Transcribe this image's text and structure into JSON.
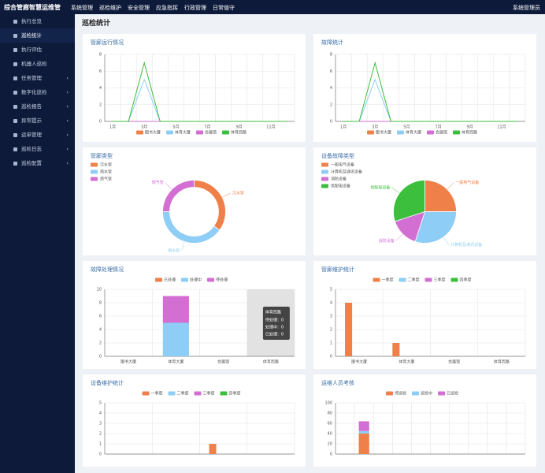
{
  "header": {
    "title": "综合管廊智慧运维管",
    "menu": [
      "系统管理",
      "巡检维护",
      "安全管理",
      "应急指挥",
      "行政管理",
      "日常值守"
    ],
    "user": "系统管理员"
  },
  "sidebar": {
    "active": 1,
    "items": [
      {
        "label": "执行总览",
        "expandable": false
      },
      {
        "label": "巡检统计",
        "expandable": false
      },
      {
        "label": "执行评估",
        "expandable": false
      },
      {
        "label": "机器人巡检",
        "expandable": false
      },
      {
        "label": "任务管理",
        "expandable": true
      },
      {
        "label": "数字化巡检",
        "expandable": true
      },
      {
        "label": "巡检报告",
        "expandable": true
      },
      {
        "label": "异常提示",
        "expandable": true
      },
      {
        "label": "运单管理",
        "expandable": true
      },
      {
        "label": "巡检日志",
        "expandable": true
      },
      {
        "label": "巡检配置",
        "expandable": true
      }
    ]
  },
  "page_title": "巡检统计",
  "panels": [
    {
      "type": "line",
      "title": "管廊运行情况",
      "legend": "bottom",
      "grid": true,
      "categories": [
        "1月",
        null,
        "3月",
        null,
        "5月",
        null,
        "7月",
        null,
        "9月",
        null,
        "11月",
        null
      ],
      "ylim": [
        0,
        8
      ],
      "yticks": [
        0,
        2,
        4,
        6,
        8
      ],
      "series": [
        {
          "name": "图书大厦",
          "color": "#f0804a",
          "values": [
            0,
            0,
            0,
            0,
            0,
            0,
            0,
            0,
            0,
            0,
            0,
            0
          ]
        },
        {
          "name": "体育大厦",
          "color": "#8ecdf5",
          "values": [
            0,
            0,
            5,
            0,
            0,
            0,
            0,
            0,
            0,
            0,
            0,
            0
          ]
        },
        {
          "name": "会展馆",
          "color": "#d36fd3",
          "values": [
            0,
            0,
            0,
            0,
            0,
            0,
            0,
            0,
            0,
            0,
            0,
            0
          ]
        },
        {
          "name": "体育西路",
          "color": "#3cbf3c",
          "values": [
            0,
            0,
            7,
            0,
            0,
            0,
            0,
            0,
            0,
            0,
            0,
            0
          ]
        }
      ]
    },
    {
      "type": "line",
      "title": "故障统计",
      "legend": "bottom",
      "grid": true,
      "categories": [
        "1月",
        null,
        "3月",
        null,
        "5月",
        null,
        "7月",
        null,
        "9月",
        null,
        "11月",
        null
      ],
      "ylim": [
        0,
        8
      ],
      "yticks": [
        0,
        2,
        4,
        6,
        8
      ],
      "series": [
        {
          "name": "图书大厦",
          "color": "#f0804a",
          "values": [
            0,
            0,
            0,
            0,
            0,
            0,
            0,
            0,
            0,
            0,
            0,
            0
          ]
        },
        {
          "name": "体育大厦",
          "color": "#8ecdf5",
          "values": [
            0,
            0,
            5,
            0,
            0,
            0,
            0,
            0,
            0,
            0,
            0,
            0
          ]
        },
        {
          "name": "会展馆",
          "color": "#d36fd3",
          "values": [
            0,
            0,
            0,
            0,
            0,
            0,
            0,
            0,
            0,
            0,
            0,
            0
          ]
        },
        {
          "name": "体育西路",
          "color": "#3cbf3c",
          "values": [
            0,
            0,
            7,
            0,
            0,
            0,
            0,
            0,
            0,
            0,
            0,
            0
          ]
        }
      ]
    },
    {
      "type": "pie",
      "title": "管廊类型",
      "legend": "top-left",
      "donut": true,
      "categories": [
        "污水管",
        "雨水管",
        "燃气管"
      ],
      "values": [
        35,
        40,
        25
      ],
      "colors": [
        "#f0804a",
        "#8ecdf5",
        "#d36fd3"
      ]
    },
    {
      "type": "pie",
      "title": "设备故障类型",
      "legend": "top-left",
      "donut": false,
      "categories": [
        "一般电气设备",
        "计算机及通讯设备",
        "消防设备",
        "供配电设备"
      ],
      "values": [
        25,
        30,
        15,
        30
      ],
      "colors": [
        "#f0804a",
        "#8ecdf5",
        "#d36fd3",
        "#3cbf3c"
      ]
    },
    {
      "type": "bar",
      "title": "故障处理情况",
      "legend": "top",
      "stacked": true,
      "grid": true,
      "categories": [
        "图书大厦",
        "体育大厦",
        "会展馆",
        "体育西路"
      ],
      "ylim": [
        0,
        10
      ],
      "yticks": [
        0,
        2,
        4,
        6,
        8,
        10
      ],
      "series": [
        {
          "name": "已处理",
          "color": "#f0804a",
          "values": [
            0,
            0,
            0,
            0
          ]
        },
        {
          "name": "处理中",
          "color": "#8ecdf5",
          "values": [
            0,
            5,
            0,
            0
          ]
        },
        {
          "name": "待处理",
          "color": "#d36fd3",
          "values": [
            0,
            4,
            0,
            0
          ]
        }
      ],
      "tooltip": {
        "title": "体育西路",
        "lines": [
          "待处理：0",
          "处理中：0",
          "已处理：0"
        ]
      }
    },
    {
      "type": "bar",
      "title": "管廊维护统计",
      "legend": "top",
      "stacked": false,
      "grid": true,
      "categories": [
        "图书大厦",
        "体育大厦",
        "会展馆",
        "体育西路"
      ],
      "ylim": [
        0,
        5
      ],
      "yticks": [
        0,
        1,
        2,
        3,
        4,
        5
      ],
      "series": [
        {
          "name": "一季度",
          "color": "#f0804a",
          "values": [
            4,
            1,
            0,
            0
          ]
        },
        {
          "name": "二季度",
          "color": "#8ecdf5",
          "values": [
            0,
            0,
            0,
            0
          ]
        },
        {
          "name": "三季度",
          "color": "#d36fd3",
          "values": [
            0,
            0,
            0,
            0
          ]
        },
        {
          "name": "四季度",
          "color": "#3cbf3c",
          "values": [
            0,
            0,
            0,
            0
          ]
        }
      ]
    },
    {
      "type": "bar",
      "title": "设备维护统计",
      "legend": "top",
      "stacked": false,
      "grid": true,
      "categories": [
        null,
        null,
        null,
        null
      ],
      "ylim": [
        0,
        5
      ],
      "yticks": [
        0,
        1,
        2,
        3,
        4,
        5
      ],
      "series": [
        {
          "name": "一季度",
          "color": "#f0804a",
          "values": [
            0,
            0,
            1,
            0
          ]
        },
        {
          "name": "二季度",
          "color": "#8ecdf5",
          "values": [
            0,
            0,
            0,
            0
          ]
        },
        {
          "name": "三季度",
          "color": "#d36fd3",
          "values": [
            0,
            0,
            0,
            0
          ]
        },
        {
          "name": "四季度",
          "color": "#3cbf3c",
          "values": [
            0,
            0,
            0,
            0
          ]
        }
      ]
    },
    {
      "type": "bar",
      "title": "运维人员考核",
      "legend": "top",
      "stacked": true,
      "grid": true,
      "categories": [
        null,
        null,
        null,
        null,
        null,
        null,
        null,
        null,
        null,
        null
      ],
      "ylim": [
        0,
        100
      ],
      "yticks": [
        0,
        20,
        40,
        60,
        80,
        100
      ],
      "series": [
        {
          "name": "待巡检",
          "color": "#f0804a",
          "values": [
            0,
            40,
            0,
            0,
            0,
            0,
            0,
            0,
            0,
            0
          ]
        },
        {
          "name": "巡检中",
          "color": "#8ecdf5",
          "values": [
            0,
            5,
            0,
            0,
            0,
            0,
            0,
            0,
            0,
            0
          ]
        },
        {
          "name": "已巡检",
          "color": "#d36fd3",
          "values": [
            0,
            19,
            0,
            0,
            0,
            0,
            0,
            0,
            0,
            0
          ]
        }
      ]
    }
  ]
}
